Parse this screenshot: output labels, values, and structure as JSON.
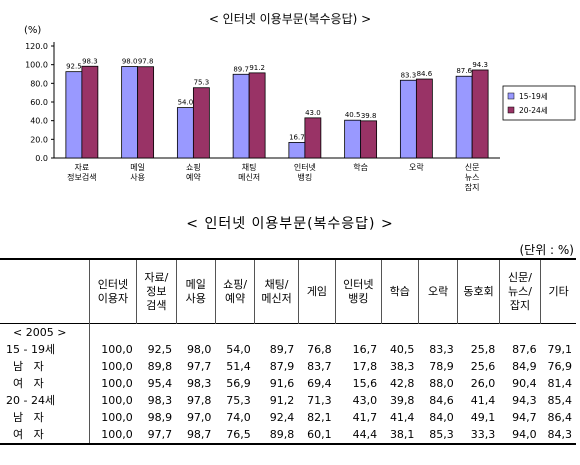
{
  "chart_data": {
    "type": "bar",
    "title": "< 인터넷 이용부문(복수응답) >",
    "ylabel": "(%)",
    "ylim": [
      0,
      120
    ],
    "yticks": [
      "0.0",
      "20.0",
      "40.0",
      "60.0",
      "80.0",
      "100.0",
      "120.0"
    ],
    "categories": [
      "자료\n정보검색",
      "메일\n사용",
      "쇼핑\n예약",
      "채팅\n메신저",
      "인터넷\n뱅킹",
      "학습",
      "오락",
      "신문\n뉴스\n잡지"
    ],
    "series": [
      {
        "name": "15-19세",
        "color": "#9999ff",
        "values": [
          92.5,
          98.0,
          54.0,
          89.7,
          16.7,
          40.5,
          83.3,
          87.6
        ],
        "labels": [
          "92.5",
          "98.0",
          "54.0",
          "89.7",
          "16.7",
          "40.5",
          "83.3",
          "87.6"
        ]
      },
      {
        "name": "20-24세",
        "color": "#993366",
        "values": [
          98.3,
          97.8,
          75.3,
          91.2,
          43.0,
          39.8,
          84.6,
          94.3
        ],
        "labels": [
          "98.3",
          "97.8",
          "75.3",
          "91.2",
          "43.0",
          "39.8",
          "84.6",
          "94.3"
        ]
      }
    ],
    "legend_position": "right"
  },
  "table": {
    "title": "< 인터넷 이용부문(복수응답) >",
    "unit": "(단위 : %)",
    "headers": [
      "",
      "인터넷\n이용자",
      "자료/\n정보\n검색",
      "메일\n사용",
      "쇼핑/\n예약",
      "채팅/\n메신저",
      "게임",
      "인터넷\n뱅킹",
      "학습",
      "오락",
      "동호회",
      "신문/\n뉴스/\n잡지",
      "기타"
    ],
    "rows": [
      [
        "  < 2005 >",
        "",
        "",
        "",
        "",
        "",
        "",
        "",
        "",
        "",
        "",
        "",
        ""
      ],
      [
        "15 - 19세",
        "100,0",
        "92,5",
        "98,0",
        "54,0",
        "89,7",
        "76,8",
        "16,7",
        "40,5",
        "83,3",
        "25,8",
        "87,6",
        "79,1"
      ],
      [
        "  남   자",
        "100,0",
        "89,8",
        "97,7",
        "51,4",
        "87,9",
        "83,7",
        "17,8",
        "38,3",
        "78,9",
        "25,6",
        "84,9",
        "76,9"
      ],
      [
        "  여   자",
        "100,0",
        "95,4",
        "98,3",
        "56,9",
        "91,6",
        "69,4",
        "15,6",
        "42,8",
        "88,0",
        "26,0",
        "90,4",
        "81,4"
      ],
      [
        "20 - 24세",
        "100,0",
        "98,3",
        "97,8",
        "75,3",
        "91,2",
        "71,3",
        "43,0",
        "39,8",
        "84,6",
        "41,4",
        "94,3",
        "85,4"
      ],
      [
        "  남   자",
        "100,0",
        "98,9",
        "97,0",
        "74,0",
        "92,4",
        "82,1",
        "41,7",
        "41,4",
        "84,0",
        "49,1",
        "94,7",
        "86,4"
      ],
      [
        "  여   자",
        "100,0",
        "97,7",
        "98,7",
        "76,5",
        "89,8",
        "60,1",
        "44,4",
        "38,1",
        "85,3",
        "33,3",
        "94,0",
        "84,3"
      ]
    ]
  }
}
